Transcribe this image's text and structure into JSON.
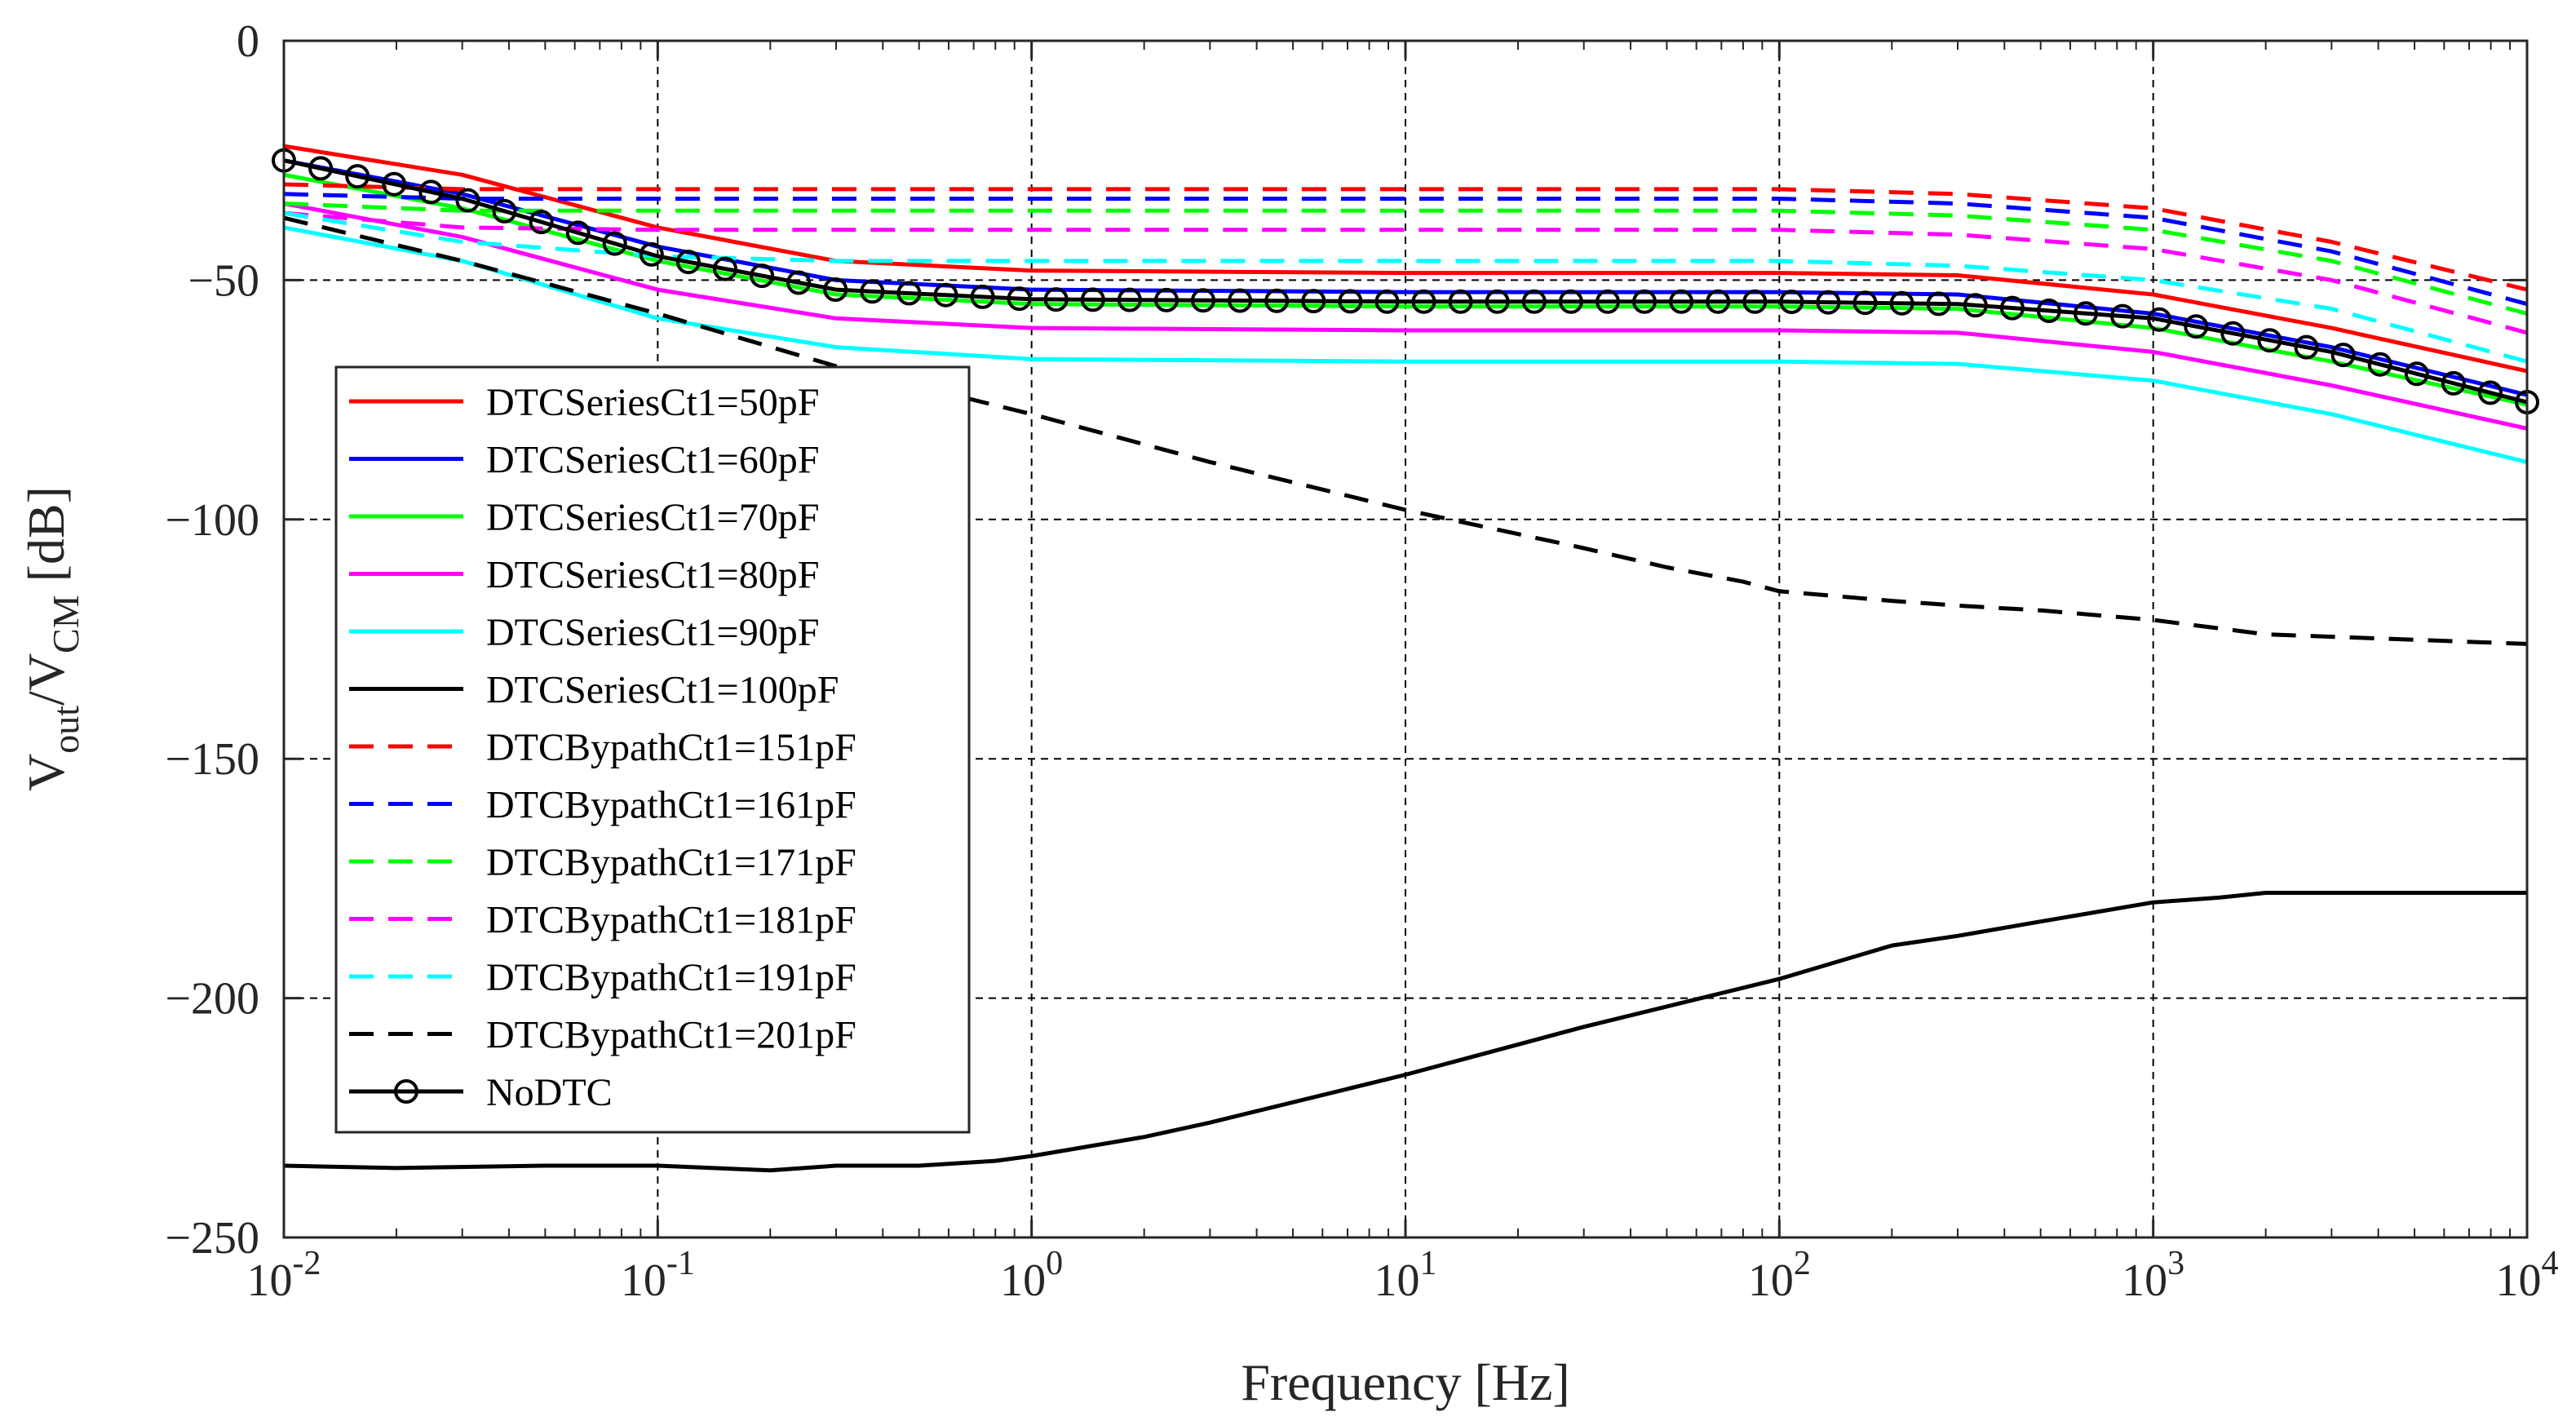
{
  "chart_data": {
    "type": "line",
    "title": "",
    "xscale": "log",
    "xlim": [
      0.01,
      10000
    ],
    "ylim": [
      -250,
      0
    ],
    "xlabel": "Frequency [Hz]",
    "ylabel": {
      "main": "V",
      "sub1": "out",
      "slash": "/V",
      "sub2": "CM",
      "unit": " [dB]"
    },
    "grid": "dashed major grid",
    "legend_position": "left",
    "x_tick_values": [
      0.01,
      0.1,
      1,
      10,
      100,
      1000,
      10000
    ],
    "x_tick_labels": [
      {
        "base": "10",
        "exp": "-2"
      },
      {
        "base": "10",
        "exp": "-1"
      },
      {
        "base": "10",
        "exp": "0"
      },
      {
        "base": "10",
        "exp": "1"
      },
      {
        "base": "10",
        "exp": "2"
      },
      {
        "base": "10",
        "exp": "3"
      },
      {
        "base": "10",
        "exp": "4"
      }
    ],
    "y_ticks": [
      0,
      -50,
      -100,
      -150,
      -200,
      -250
    ],
    "y_tick_labels": [
      "0",
      "−50",
      "−100",
      "−150",
      "−200",
      "−250"
    ],
    "series": [
      {
        "name": "DTCSeriesCt1=50pF",
        "color": "#ff0000",
        "dash": "solid",
        "x": [
          0.01,
          0.03,
          0.1,
          0.3,
          1,
          10,
          100,
          300,
          1000,
          3000,
          10000
        ],
        "y": [
          -22,
          -28,
          -39,
          -46,
          -48,
          -48.5,
          -48.5,
          -49,
          -53,
          -60,
          -69
        ]
      },
      {
        "name": "DTCSeriesCt1=60pF",
        "color": "#0000ff",
        "dash": "solid",
        "x": [
          0.01,
          0.03,
          0.1,
          0.3,
          1,
          10,
          100,
          300,
          1000,
          3000,
          10000
        ],
        "y": [
          -25,
          -32,
          -43,
          -50,
          -52,
          -52.5,
          -52.5,
          -53,
          -57,
          -64,
          -74
        ]
      },
      {
        "name": "DTCSeriesCt1=70pF",
        "color": "#00ff00",
        "dash": "solid",
        "x": [
          0.01,
          0.03,
          0.1,
          0.3,
          1,
          10,
          100,
          300,
          1000,
          3000,
          10000
        ],
        "y": [
          -28,
          -35,
          -46,
          -53,
          -55,
          -55.5,
          -55.5,
          -56,
          -60,
          -67,
          -76
        ]
      },
      {
        "name": "DTCSeriesCt1=80pF",
        "color": "#ff00ff",
        "dash": "solid",
        "x": [
          0.01,
          0.03,
          0.1,
          0.3,
          1,
          10,
          100,
          300,
          1000,
          3000,
          10000
        ],
        "y": [
          -34,
          -41,
          -52,
          -58,
          -60,
          -60.5,
          -60.5,
          -61,
          -65,
          -72,
          -81
        ]
      },
      {
        "name": "DTCSeriesCt1=90pF",
        "color": "#00ffff",
        "dash": "solid",
        "x": [
          0.01,
          0.03,
          0.1,
          0.3,
          1,
          10,
          100,
          300,
          1000,
          3000,
          10000
        ],
        "y": [
          -39,
          -46,
          -58,
          -64,
          -66.5,
          -67,
          -67,
          -67.5,
          -71,
          -78,
          -88
        ]
      },
      {
        "name": "DTCSeriesCt1=100pF",
        "color": "#000000",
        "dash": "solid",
        "x": [
          0.01,
          0.02,
          0.05,
          0.1,
          0.2,
          0.3,
          0.5,
          0.8,
          1,
          2,
          3,
          10,
          30,
          100,
          200,
          300,
          500,
          1000,
          1500,
          2000,
          10000
        ],
        "y": [
          -235,
          -235.5,
          -235,
          -235,
          -236,
          -235,
          -235,
          -234,
          -233,
          -229,
          -226,
          -216,
          -206,
          -196,
          -189,
          -187,
          -184,
          -180,
          -179,
          -178,
          -178
        ]
      },
      {
        "name": "DTCBypathCt1=151pF",
        "color": "#ff0000",
        "dash": "dashed",
        "x": [
          0.01,
          0.03,
          0.1,
          1,
          100,
          300,
          1000,
          3000,
          10000
        ],
        "y": [
          -30,
          -31,
          -31,
          -31,
          -31,
          -32,
          -35,
          -42,
          -52
        ]
      },
      {
        "name": "DTCBypathCt1=161pF",
        "color": "#0000ff",
        "dash": "dashed",
        "x": [
          0.01,
          0.03,
          0.1,
          1,
          100,
          300,
          1000,
          3000,
          10000
        ],
        "y": [
          -32,
          -33,
          -33,
          -33,
          -33,
          -34,
          -37,
          -44,
          -55
        ]
      },
      {
        "name": "DTCBypathCt1=171pF",
        "color": "#00ff00",
        "dash": "dashed",
        "x": [
          0.01,
          0.03,
          0.1,
          1,
          100,
          300,
          1000,
          3000,
          10000
        ],
        "y": [
          -34,
          -35.5,
          -35.5,
          -35.5,
          -35.5,
          -36.5,
          -39.5,
          -46,
          -57
        ]
      },
      {
        "name": "DTCBypathCt1=181pF",
        "color": "#ff00ff",
        "dash": "dashed",
        "x": [
          0.01,
          0.03,
          0.1,
          1,
          100,
          300,
          1000,
          3000,
          10000
        ],
        "y": [
          -36,
          -39,
          -39.5,
          -39.5,
          -39.5,
          -40.5,
          -43.5,
          -50,
          -61
        ]
      },
      {
        "name": "DTCBypathCt1=191pF",
        "color": "#00ffff",
        "dash": "dashed",
        "x": [
          0.01,
          0.03,
          0.1,
          0.3,
          1,
          100,
          300,
          1000,
          3000,
          10000
        ],
        "y": [
          -36,
          -42,
          -45,
          -46,
          -46,
          -46,
          -47,
          -50,
          -56,
          -67
        ]
      },
      {
        "name": "DTCBypathCt1=201pF",
        "color": "#000000",
        "dash": "dashed",
        "x": [
          0.01,
          0.03,
          0.1,
          0.3,
          1,
          3,
          10,
          30,
          50,
          80,
          100,
          200,
          300,
          500,
          1000,
          2000,
          10000
        ],
        "y": [
          -37,
          -46,
          -57,
          -68,
          -78,
          -88,
          -98,
          -106,
          -110,
          -113,
          -115,
          -117,
          -118,
          -119,
          -121,
          -124,
          -126
        ]
      },
      {
        "name": "NoDTC",
        "color": "#000000",
        "dash": "solid",
        "marker": "circle",
        "x": [
          0.01,
          0.03,
          0.1,
          0.3,
          1,
          10,
          100,
          300,
          1000,
          3000,
          10000
        ],
        "y": [
          -25,
          -33,
          -45,
          -52,
          -54,
          -54.5,
          -54.5,
          -55,
          -58,
          -65,
          -75.5
        ]
      }
    ]
  }
}
